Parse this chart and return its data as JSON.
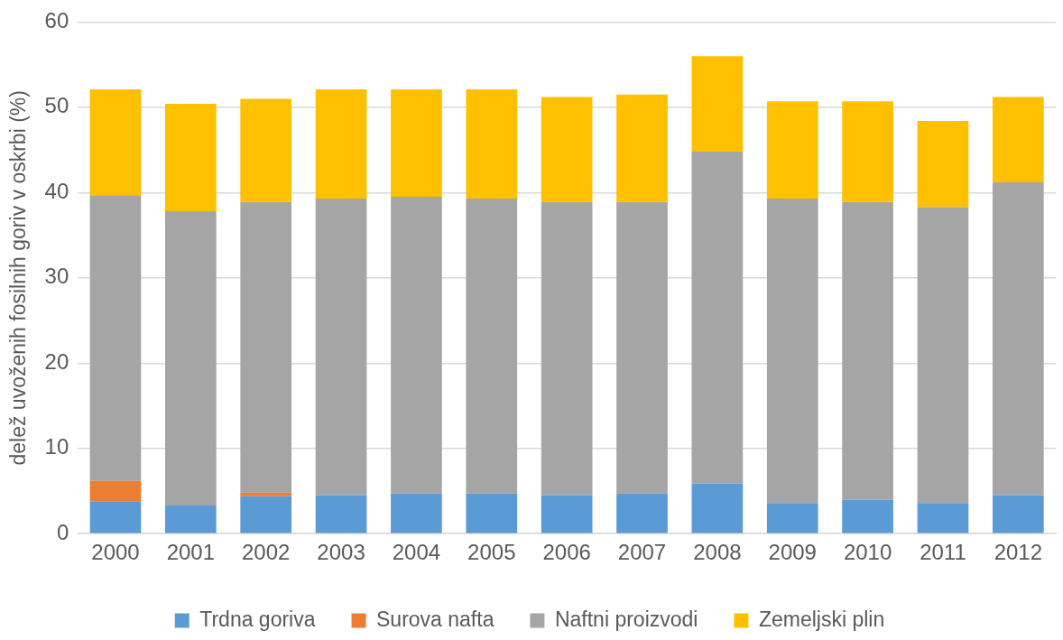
{
  "chart_data": {
    "type": "bar",
    "ylabel": "delež uvoženih fosilnih goriv v oskrbi (%)",
    "categories": [
      "2000",
      "2001",
      "2002",
      "2003",
      "2004",
      "2005",
      "2006",
      "2007",
      "2008",
      "2009",
      "2010",
      "2011",
      "2012"
    ],
    "stacked": true,
    "series": [
      {
        "name": "Trdna goriva",
        "color": "#5b9bd5",
        "values": [
          3.8,
          3.3,
          4.4,
          4.5,
          4.7,
          4.7,
          4.5,
          4.7,
          5.9,
          3.6,
          4.0,
          3.6,
          4.5
        ]
      },
      {
        "name": "Surova nafta",
        "color": "#ed7d31",
        "values": [
          2.4,
          0,
          0.4,
          0,
          0,
          0,
          0,
          0,
          0,
          0,
          0,
          0,
          0
        ]
      },
      {
        "name": "Naftni proizvodi",
        "color": "#a5a5a5",
        "values": [
          33.5,
          34.5,
          34.1,
          34.8,
          34.8,
          34.6,
          34.4,
          34.2,
          38.9,
          35.7,
          34.9,
          34.7,
          36.7
        ]
      },
      {
        "name": "Zemeljski plin",
        "color": "#ffc000",
        "values": [
          12.4,
          12.6,
          12.1,
          12.8,
          12.6,
          12.8,
          12.3,
          12.6,
          11.2,
          11.4,
          11.8,
          10.1,
          10.0
        ]
      }
    ],
    "ylim": [
      0,
      60
    ],
    "yticks": [
      0,
      10,
      20,
      30,
      40,
      50,
      60
    ],
    "grid": "y",
    "legend": "bottom"
  }
}
